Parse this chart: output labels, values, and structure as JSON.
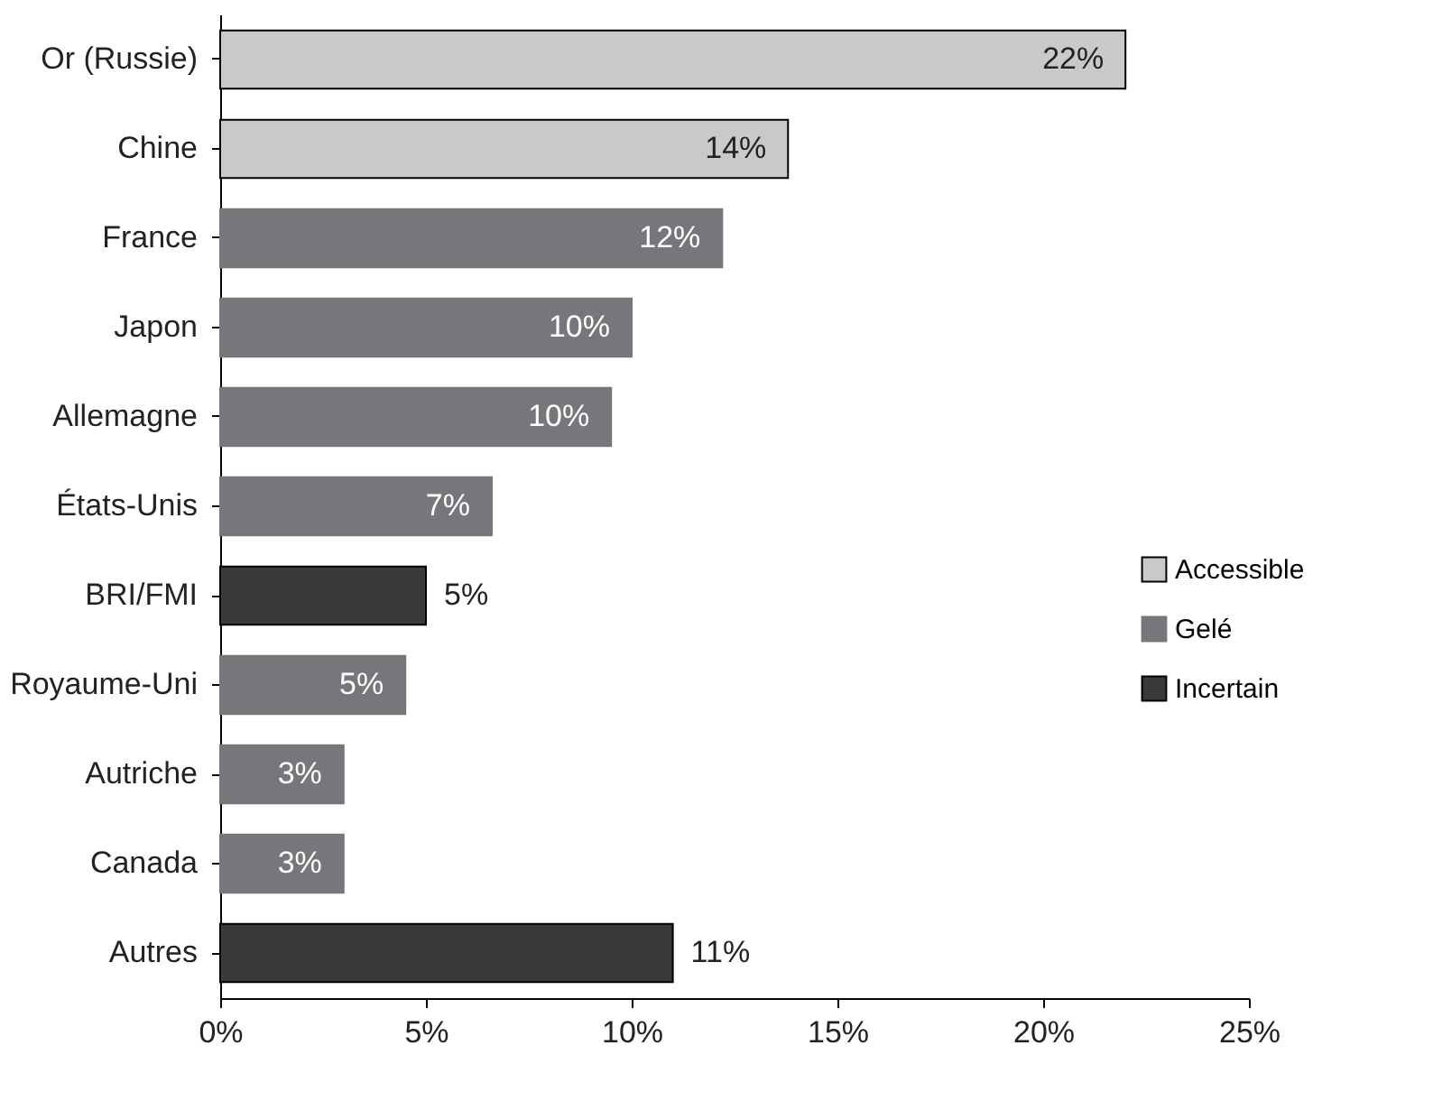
{
  "chart_data": {
    "type": "bar",
    "orientation": "horizontal",
    "categories": [
      "Or (Russie)",
      "Chine",
      "France",
      "Japon",
      "Allemagne",
      "États-Unis",
      "BRI/FMI",
      "Royaume-Uni",
      "Autriche",
      "Canada",
      "Autres"
    ],
    "series": [
      {
        "name": "Accessible",
        "color": "#c8c9cb",
        "values": [
          22,
          13.8,
          null,
          null,
          null,
          null,
          null,
          null,
          null,
          null,
          null
        ],
        "value_labels": [
          "22%",
          "14%",
          null,
          null,
          null,
          null,
          null,
          null,
          null,
          null,
          null
        ]
      },
      {
        "name": "Gelé",
        "color": "#76777a",
        "values": [
          null,
          null,
          12.2,
          10.0,
          9.5,
          6.6,
          null,
          4.5,
          3.0,
          3.0,
          null
        ],
        "value_labels": [
          null,
          null,
          "12%",
          "10%",
          "10%",
          "7%",
          null,
          "5%",
          "3%",
          "3%",
          null
        ]
      },
      {
        "name": "Incertain",
        "color": "#3a3a3a",
        "values": [
          null,
          null,
          null,
          null,
          null,
          null,
          5.0,
          null,
          null,
          null,
          11.0
        ],
        "value_labels": [
          null,
          null,
          null,
          null,
          null,
          null,
          "5%",
          null,
          null,
          null,
          "11%"
        ]
      }
    ],
    "xlim": [
      0,
      25
    ],
    "xticks": [
      {
        "value": 0,
        "label": "0%"
      },
      {
        "value": 5,
        "label": "5%"
      },
      {
        "value": 10,
        "label": "10%"
      },
      {
        "value": 15,
        "label": "15%"
      },
      {
        "value": 20,
        "label": "20%"
      },
      {
        "value": 25,
        "label": "25%"
      }
    ],
    "grid": false,
    "legend": "right"
  }
}
